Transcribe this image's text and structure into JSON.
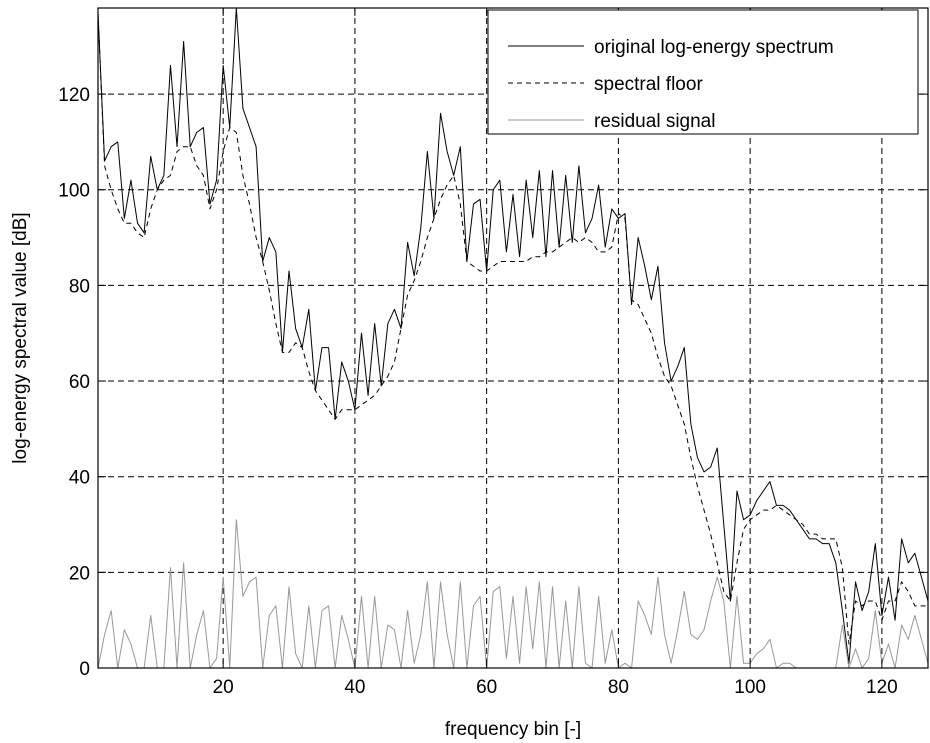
{
  "chart_data": {
    "type": "line",
    "xlabel": "frequency bin [-]",
    "ylabel": "log-energy spectral value [dB]",
    "xlim": [
      1,
      127
    ],
    "ylim": [
      0,
      138
    ],
    "xticks": [
      20,
      40,
      60,
      80,
      100,
      120
    ],
    "yticks": [
      0,
      20,
      40,
      60,
      80,
      100,
      120
    ],
    "grid": true,
    "legend_position": "top-right",
    "x": [
      1,
      2,
      3,
      4,
      5,
      6,
      7,
      8,
      9,
      10,
      11,
      12,
      13,
      14,
      15,
      16,
      17,
      18,
      19,
      20,
      21,
      22,
      23,
      24,
      25,
      26,
      27,
      28,
      29,
      30,
      31,
      32,
      33,
      34,
      35,
      36,
      37,
      38,
      39,
      40,
      41,
      42,
      43,
      44,
      45,
      46,
      47,
      48,
      49,
      50,
      51,
      52,
      53,
      54,
      55,
      56,
      57,
      58,
      59,
      60,
      61,
      62,
      63,
      64,
      65,
      66,
      67,
      68,
      69,
      70,
      71,
      72,
      73,
      74,
      75,
      76,
      77,
      78,
      79,
      80,
      81,
      82,
      83,
      84,
      85,
      86,
      87,
      88,
      89,
      90,
      91,
      92,
      93,
      94,
      95,
      96,
      97,
      98,
      99,
      100,
      101,
      102,
      103,
      104,
      105,
      106,
      107,
      108,
      109,
      110,
      111,
      112,
      113,
      114,
      115,
      116,
      117,
      118,
      119,
      120,
      121,
      122,
      123,
      124,
      125,
      126,
      127
    ],
    "series": [
      {
        "name": "original log-energy spectrum",
        "color": "#000000",
        "style": "solid",
        "values": [
          137,
          106,
          109,
          110,
          94,
          102,
          93,
          91,
          107,
          100,
          103,
          126,
          109,
          131,
          109,
          112,
          113,
          97,
          102,
          126,
          113,
          138,
          117,
          113,
          109,
          85,
          90,
          87,
          66,
          83,
          71,
          67,
          75,
          58,
          67,
          67,
          52,
          64,
          60,
          54,
          70,
          57,
          72,
          59,
          72,
          75,
          71,
          89,
          82,
          92,
          108,
          94,
          116,
          108,
          103,
          109,
          85,
          97,
          98,
          83,
          100,
          102,
          87,
          99,
          86,
          102,
          90,
          104,
          86,
          104,
          88,
          103,
          89,
          105,
          91,
          94,
          101,
          88,
          96,
          94,
          95,
          76,
          90,
          84,
          77,
          84,
          68,
          60,
          63,
          67,
          51,
          44,
          41,
          42,
          46,
          30,
          14,
          37,
          31,
          32,
          35,
          37,
          39,
          34,
          34,
          33,
          31,
          29,
          27,
          27,
          26,
          26,
          22,
          12,
          1,
          18,
          12,
          16,
          26,
          11,
          19,
          10,
          27,
          22,
          24,
          19,
          14
        ]
      },
      {
        "name": "spectral floor",
        "color": "#000000",
        "style": "dashed",
        "values": [
          137,
          105,
          100,
          96,
          93,
          93,
          91,
          90,
          96,
          100,
          102,
          103,
          108,
          109,
          109,
          105,
          103,
          96,
          100,
          108,
          113,
          112,
          103,
          97,
          90,
          85,
          79,
          72,
          66,
          66,
          68,
          67,
          62,
          58,
          56,
          54,
          52,
          54,
          54,
          54,
          55,
          56,
          57,
          59,
          61,
          64,
          71,
          78,
          81,
          85,
          90,
          94,
          98,
          101,
          103,
          97,
          85,
          84,
          83,
          83,
          84,
          85,
          85,
          85,
          85,
          85,
          86,
          86,
          87,
          87,
          88,
          89,
          90,
          89,
          90,
          89,
          87,
          87,
          88,
          95,
          94,
          77,
          76,
          73,
          70,
          65,
          61,
          59,
          55,
          51,
          44,
          38,
          33,
          28,
          22,
          16,
          14,
          22,
          29,
          31,
          32,
          33,
          33,
          34,
          33,
          32,
          31,
          30,
          28,
          28,
          27,
          27,
          27,
          21,
          5,
          14,
          13,
          14,
          14,
          10,
          14,
          14,
          18,
          16,
          13,
          13,
          13
        ]
      },
      {
        "name": "residual signal",
        "color": "#999999",
        "style": "solid",
        "values": [
          0,
          7,
          12,
          0,
          8,
          5,
          0,
          0,
          11,
          0,
          0,
          21,
          0,
          22,
          0,
          7,
          12,
          0,
          2,
          19,
          0,
          31,
          15,
          18,
          19,
          0,
          11,
          13,
          0,
          17,
          3,
          0,
          13,
          0,
          12,
          13,
          0,
          11,
          6,
          0,
          15,
          0,
          15,
          0,
          9,
          8,
          0,
          12,
          1,
          7,
          18,
          0,
          18,
          7,
          0,
          18,
          0,
          13,
          15,
          0,
          16,
          17,
          2,
          15,
          1,
          17,
          4,
          18,
          0,
          17,
          0,
          14,
          0,
          17,
          1,
          0,
          15,
          1,
          8,
          0,
          1,
          0,
          14,
          11,
          7,
          19,
          7,
          1,
          8,
          16,
          7,
          6,
          8,
          14,
          19,
          14,
          0,
          15,
          1,
          1,
          3,
          4,
          6,
          0,
          1,
          1,
          0,
          0,
          0,
          0,
          0,
          0,
          0,
          9,
          0,
          4,
          0,
          2,
          12,
          1,
          5,
          0,
          9,
          6,
          11,
          6,
          1
        ]
      }
    ]
  }
}
